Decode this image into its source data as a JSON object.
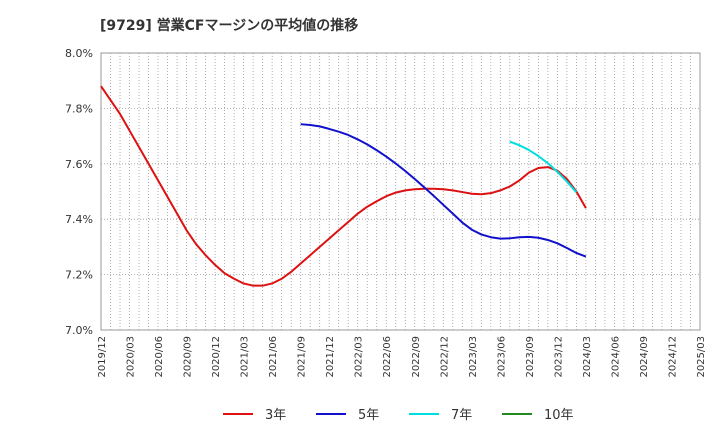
{
  "chart_data": {
    "type": "line",
    "title": "[9729]  営業CFマージンの平均値の推移",
    "xlabel": "",
    "ylabel": "",
    "ylim": [
      7.0,
      8.0
    ],
    "grid": true,
    "legend_position": "bottom",
    "yticks": [
      "7.0%",
      "7.2%",
      "7.4%",
      "7.6%",
      "7.8%",
      "8.0%"
    ],
    "ytick_values": [
      7.0,
      7.2,
      7.4,
      7.6,
      7.8,
      8.0
    ],
    "xticks": [
      "2019/12",
      "2020/03",
      "2020/06",
      "2020/09",
      "2020/12",
      "2021/03",
      "2021/06",
      "2021/09",
      "2021/12",
      "2022/03",
      "2022/06",
      "2022/09",
      "2022/12",
      "2023/03",
      "2023/06",
      "2023/09",
      "2023/12",
      "2024/03",
      "2024/06",
      "2024/09",
      "2024/12",
      "2025/03"
    ],
    "x_start": "2019/12",
    "x_end": "2025/03",
    "series": [
      {
        "name": "3年",
        "color": "#dd1111",
        "points": [
          [
            "2019/12",
            7.88
          ],
          [
            "2020/01",
            7.83
          ],
          [
            "2020/02",
            7.78
          ],
          [
            "2020/03",
            7.72
          ],
          [
            "2020/04",
            7.66
          ],
          [
            "2020/05",
            7.6
          ],
          [
            "2020/06",
            7.54
          ],
          [
            "2020/07",
            7.48
          ],
          [
            "2020/08",
            7.42
          ],
          [
            "2020/09",
            7.36
          ],
          [
            "2020/10",
            7.31
          ],
          [
            "2020/11",
            7.27
          ],
          [
            "2020/12",
            7.235
          ],
          [
            "2021/01",
            7.205
          ],
          [
            "2021/02",
            7.185
          ],
          [
            "2021/03",
            7.168
          ],
          [
            "2021/04",
            7.16
          ],
          [
            "2021/05",
            7.16
          ],
          [
            "2021/06",
            7.168
          ],
          [
            "2021/07",
            7.185
          ],
          [
            "2021/08",
            7.21
          ],
          [
            "2021/09",
            7.24
          ],
          [
            "2021/10",
            7.27
          ],
          [
            "2021/11",
            7.3
          ],
          [
            "2021/12",
            7.33
          ],
          [
            "2022/01",
            7.36
          ],
          [
            "2022/02",
            7.39
          ],
          [
            "2022/03",
            7.42
          ],
          [
            "2022/04",
            7.445
          ],
          [
            "2022/05",
            7.465
          ],
          [
            "2022/06",
            7.483
          ],
          [
            "2022/07",
            7.496
          ],
          [
            "2022/08",
            7.504
          ],
          [
            "2022/09",
            7.508
          ],
          [
            "2022/10",
            7.51
          ],
          [
            "2022/11",
            7.51
          ],
          [
            "2022/12",
            7.508
          ],
          [
            "2023/01",
            7.504
          ],
          [
            "2023/02",
            7.498
          ],
          [
            "2023/03",
            7.492
          ],
          [
            "2023/04",
            7.49
          ],
          [
            "2023/05",
            7.494
          ],
          [
            "2023/06",
            7.504
          ],
          [
            "2023/07",
            7.518
          ],
          [
            "2023/08",
            7.54
          ],
          [
            "2023/09",
            7.568
          ],
          [
            "2023/10",
            7.585
          ],
          [
            "2023/11",
            7.588
          ],
          [
            "2023/12",
            7.575
          ],
          [
            "2024/01",
            7.545
          ],
          [
            "2024/02",
            7.5
          ],
          [
            "2024/03",
            7.44
          ]
        ]
      },
      {
        "name": "5年",
        "color": "#1111cc",
        "points": [
          [
            "2021/09",
            7.743
          ],
          [
            "2021/10",
            7.74
          ],
          [
            "2021/11",
            7.735
          ],
          [
            "2021/12",
            7.726
          ],
          [
            "2022/01",
            7.716
          ],
          [
            "2022/02",
            7.704
          ],
          [
            "2022/03",
            7.688
          ],
          [
            "2022/04",
            7.67
          ],
          [
            "2022/05",
            7.649
          ],
          [
            "2022/06",
            7.626
          ],
          [
            "2022/07",
            7.601
          ],
          [
            "2022/08",
            7.574
          ],
          [
            "2022/09",
            7.545
          ],
          [
            "2022/10",
            7.515
          ],
          [
            "2022/11",
            7.484
          ],
          [
            "2022/12",
            7.452
          ],
          [
            "2023/01",
            7.42
          ],
          [
            "2023/02",
            7.388
          ],
          [
            "2023/03",
            7.362
          ],
          [
            "2023/04",
            7.345
          ],
          [
            "2023/05",
            7.335
          ],
          [
            "2023/06",
            7.33
          ],
          [
            "2023/07",
            7.331
          ],
          [
            "2023/08",
            7.335
          ],
          [
            "2023/09",
            7.336
          ],
          [
            "2023/10",
            7.333
          ],
          [
            "2023/11",
            7.325
          ],
          [
            "2023/12",
            7.313
          ],
          [
            "2024/01",
            7.296
          ],
          [
            "2024/02",
            7.278
          ],
          [
            "2024/03",
            7.265
          ]
        ]
      },
      {
        "name": "7年",
        "color": "#00dddd",
        "points": [
          [
            "2023/07",
            7.68
          ],
          [
            "2023/08",
            7.667
          ],
          [
            "2023/09",
            7.65
          ],
          [
            "2023/10",
            7.628
          ],
          [
            "2023/11",
            7.602
          ],
          [
            "2023/12",
            7.571
          ],
          [
            "2024/01",
            7.536
          ],
          [
            "2024/02",
            7.497
          ]
        ]
      },
      {
        "name": "10年",
        "color": "#228822",
        "points": []
      }
    ]
  }
}
